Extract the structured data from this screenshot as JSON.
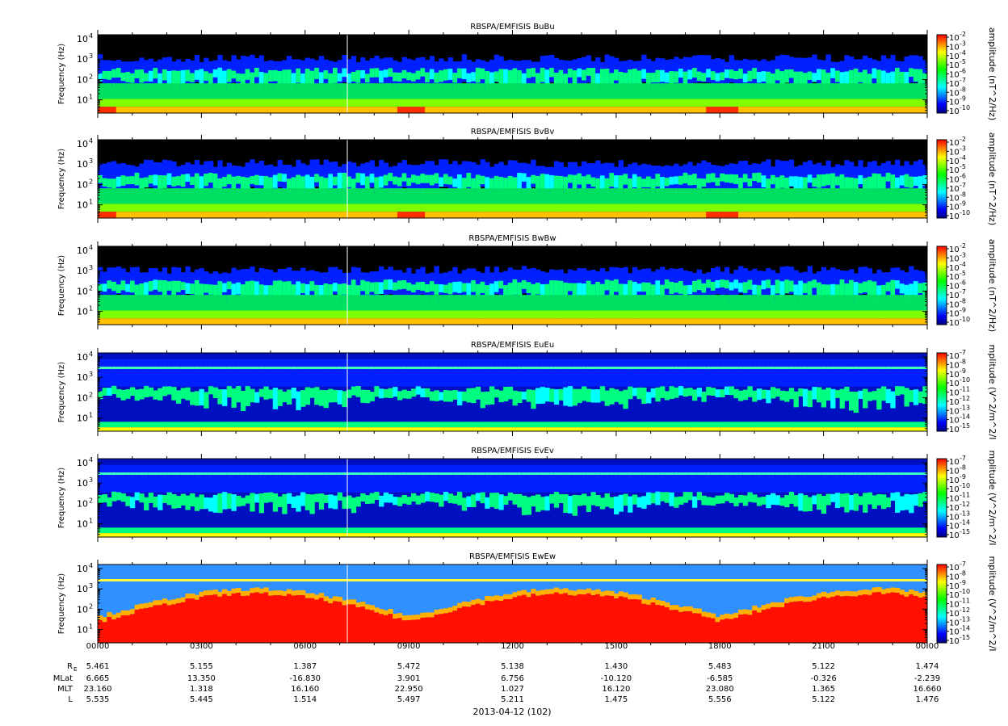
{
  "chart_data": {
    "type": "heatmap",
    "date_label": "2013-04-12 (102)",
    "x_axis": {
      "tick_labels": [
        "00:00",
        "03:00",
        "06:00",
        "09:00",
        "12:00",
        "15:00",
        "18:00",
        "21:00",
        "00:00"
      ],
      "range_hours": [
        0,
        24
      ],
      "major_step_hours": 3,
      "minor_step_hours": 1
    },
    "orbit_rows": [
      {
        "label": "R",
        "subscript": "E",
        "values": [
          "5.461",
          "5.155",
          "1.387",
          "5.472",
          "5.138",
          "1.430",
          "5.483",
          "5.122",
          "1.474"
        ]
      },
      {
        "label": "MLat",
        "subscript": "",
        "values": [
          "6.665",
          "13.350",
          "-16.830",
          "3.901",
          "6.756",
          "-10.120",
          "-6.585",
          "-0.326",
          "-2.239"
        ]
      },
      {
        "label": "MLT",
        "subscript": "",
        "values": [
          "23.160",
          "1.318",
          "16.160",
          "22.950",
          "1.027",
          "16.120",
          "23.080",
          "1.365",
          "16.660"
        ]
      },
      {
        "label": "L",
        "subscript": "",
        "values": [
          "5.535",
          "5.445",
          "1.514",
          "5.497",
          "5.211",
          "1.475",
          "5.556",
          "5.122",
          "1.476"
        ]
      }
    ],
    "panels": [
      {
        "title": "RBSPA/EMFISIS  BuBu",
        "ylabel": "Frequency (Hz)",
        "yscale": "log",
        "yticks": [
          "10",
          "10",
          "10",
          "10"
        ],
        "ytick_exps": [
          "1",
          "2",
          "3",
          "4"
        ],
        "colorbar_label": "amplitude (nT^2/Hz)",
        "colorbar_ticks": [
          "10",
          "10",
          "10",
          "10",
          "10",
          "10",
          "10",
          "10",
          "10"
        ],
        "colorbar_exps": [
          "-2",
          "-3",
          "-4",
          "-5",
          "-6",
          "-7",
          "-8",
          "-9",
          "-10"
        ]
      },
      {
        "title": "RBSPA/EMFISIS  BvBv",
        "ylabel": "Frequency (Hz)",
        "yscale": "log",
        "yticks": [
          "10",
          "10",
          "10",
          "10"
        ],
        "ytick_exps": [
          "1",
          "2",
          "3",
          "4"
        ],
        "colorbar_label": "amplitude (nT^2/Hz)",
        "colorbar_ticks": [
          "10",
          "10",
          "10",
          "10",
          "10",
          "10",
          "10",
          "10",
          "10"
        ],
        "colorbar_exps": [
          "-2",
          "-3",
          "-4",
          "-5",
          "-6",
          "-7",
          "-8",
          "-9",
          "-10"
        ]
      },
      {
        "title": "RBSPA/EMFISIS  BwBw",
        "ylabel": "Frequency (Hz)",
        "yscale": "log",
        "yticks": [
          "10",
          "10",
          "10",
          "10"
        ],
        "ytick_exps": [
          "1",
          "2",
          "3",
          "4"
        ],
        "colorbar_label": "amplitude (nT^2/Hz)",
        "colorbar_ticks": [
          "10",
          "10",
          "10",
          "10",
          "10",
          "10",
          "10",
          "10",
          "10"
        ],
        "colorbar_exps": [
          "-2",
          "-3",
          "-4",
          "-5",
          "-6",
          "-7",
          "-8",
          "-9",
          "-10"
        ]
      },
      {
        "title": "RBSPA/EMFISIS  EuEu",
        "ylabel": "Frequency (Hz)",
        "yscale": "log",
        "yticks": [
          "10",
          "10",
          "10",
          "10"
        ],
        "ytick_exps": [
          "1",
          "2",
          "3",
          "4"
        ],
        "colorbar_label": "mplitude (V^2/m^2/I",
        "colorbar_ticks": [
          "10",
          "10",
          "10",
          "10",
          "10",
          "10",
          "10",
          "10",
          "10"
        ],
        "colorbar_exps": [
          "-7",
          "-8",
          "-9",
          "-10",
          "-11",
          "-12",
          "-13",
          "-14",
          "-15"
        ]
      },
      {
        "title": "RBSPA/EMFISIS  EvEv",
        "ylabel": "Frequency (Hz)",
        "yscale": "log",
        "yticks": [
          "10",
          "10",
          "10",
          "10"
        ],
        "ytick_exps": [
          "1",
          "2",
          "3",
          "4"
        ],
        "colorbar_label": "mplitude (V^2/m^2/I",
        "colorbar_ticks": [
          "10",
          "10",
          "10",
          "10",
          "10",
          "10",
          "10",
          "10",
          "10"
        ],
        "colorbar_exps": [
          "-7",
          "-8",
          "-9",
          "-10",
          "-11",
          "-12",
          "-13",
          "-14",
          "-15"
        ]
      },
      {
        "title": "RBSPA/EMFISIS  EwEw",
        "ylabel": "Frequency (Hz)",
        "yscale": "log",
        "yticks": [
          "10",
          "10",
          "10",
          "10"
        ],
        "ytick_exps": [
          "1",
          "2",
          "3",
          "4"
        ],
        "colorbar_label": "mplitude (V^2/m^2/I",
        "colorbar_ticks": [
          "10",
          "10",
          "10",
          "10",
          "10",
          "10",
          "10",
          "10",
          "10"
        ],
        "colorbar_exps": [
          "-7",
          "-8",
          "-9",
          "-10",
          "-11",
          "-12",
          "-13",
          "-14",
          "-15"
        ]
      }
    ],
    "colormap": [
      "#000080",
      "#0000ff",
      "#0080ff",
      "#00ffff",
      "#00ff80",
      "#00ff00",
      "#80ff00",
      "#ffff00",
      "#ff8000",
      "#ff0000"
    ],
    "background_color": "#000000"
  }
}
